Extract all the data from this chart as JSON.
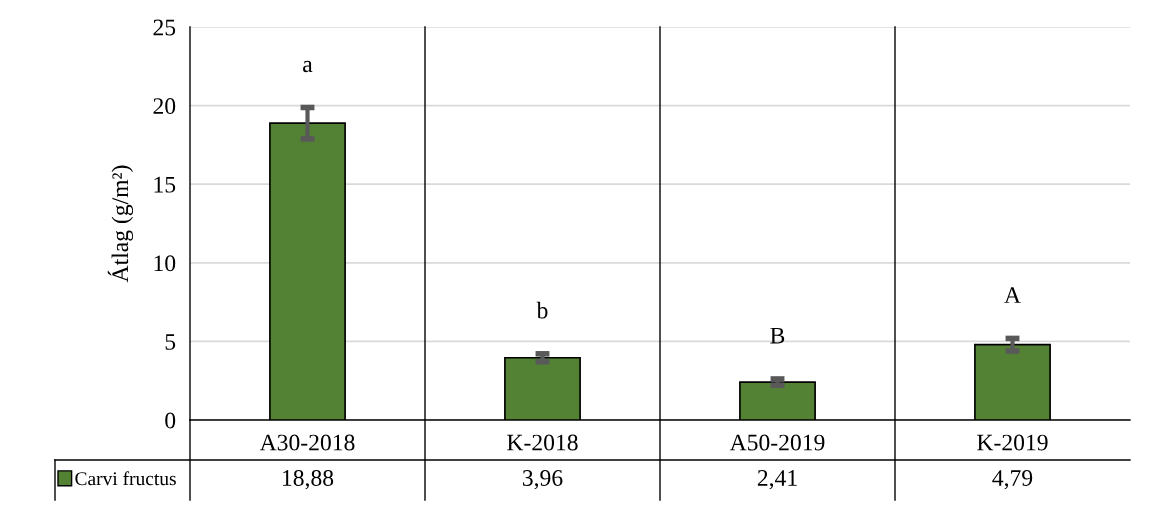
{
  "chart_data": {
    "type": "bar",
    "categories": [
      "A30-2018",
      "K-2018",
      "A50-2019",
      "K-2019"
    ],
    "series": [
      {
        "name": "Carvi fructus",
        "color": "#548235",
        "values": [
          18.88,
          3.96,
          2.41,
          4.79
        ],
        "errors": [
          1.0,
          0.25,
          0.2,
          0.4
        ],
        "value_labels": [
          "18,88",
          "3,96",
          "2,41",
          "4,79"
        ]
      }
    ],
    "ylabel": "Átlag (g/m²)",
    "ylim": [
      0,
      25
    ],
    "yticks": [
      0,
      5,
      10,
      15,
      20,
      25
    ],
    "grid": "y",
    "legend": "bottom",
    "annotations": [
      "a",
      "b",
      "B",
      "A"
    ]
  }
}
